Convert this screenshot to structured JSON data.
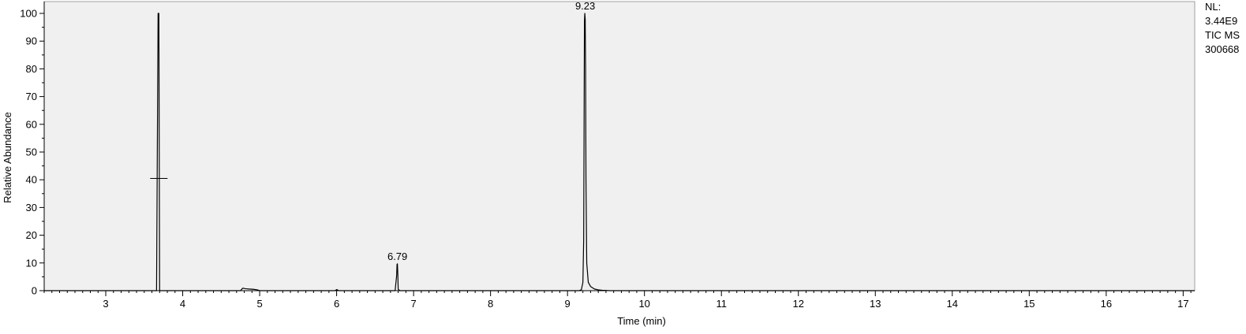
{
  "chart_data": {
    "type": "line",
    "xlabel": "Time (min)",
    "ylabel": "Relative Abundance",
    "xlim": [
      2.2,
      17.15
    ],
    "ylim": [
      0,
      100
    ],
    "x_ticks": [
      3,
      4,
      5,
      6,
      7,
      8,
      9,
      10,
      11,
      12,
      13,
      14,
      15,
      16,
      17
    ],
    "y_ticks": [
      0,
      10,
      20,
      30,
      40,
      50,
      60,
      70,
      80,
      90,
      100
    ],
    "grid": false,
    "colors": {
      "plot_background": "#f0f0f0",
      "trace": "#000000"
    },
    "series": [
      {
        "x": [
          2.2,
          3.66,
          3.68,
          3.69,
          3.7,
          3.72,
          4.75,
          4.78,
          4.82,
          4.86,
          4.92,
          4.97,
          5.0,
          5.98,
          6.0,
          6.03,
          6.76,
          6.78,
          6.785,
          6.79,
          6.795,
          6.8,
          6.82,
          9.15,
          9.18,
          9.2,
          9.21,
          9.215,
          9.22,
          9.225,
          9.23,
          9.235,
          9.24,
          9.25,
          9.27,
          9.3,
          9.35,
          9.4,
          9.45,
          9.55,
          17.15
        ],
        "y": [
          0,
          0,
          100,
          100,
          0,
          0,
          0,
          0.9,
          0.7,
          0.6,
          0.5,
          0.3,
          0,
          0,
          0.4,
          0,
          0,
          5.5,
          9.5,
          9.7,
          6.0,
          0.5,
          0,
          0,
          0.3,
          3.0,
          18.0,
          55.0,
          97.0,
          100,
          98.0,
          80.0,
          40.0,
          10.0,
          3.0,
          1.5,
          0.6,
          0.3,
          0.15,
          0,
          0
        ]
      }
    ],
    "annotations": [
      {
        "x": 9.23,
        "y": 100,
        "text": "9.23"
      },
      {
        "x": 6.79,
        "y": 9.7,
        "text": "6.79"
      }
    ],
    "marker": {
      "x": 3.69,
      "y": 40.5
    }
  },
  "side_info": [
    "NL:",
    "3.44E9",
    "TIC  MS",
    "300668"
  ]
}
